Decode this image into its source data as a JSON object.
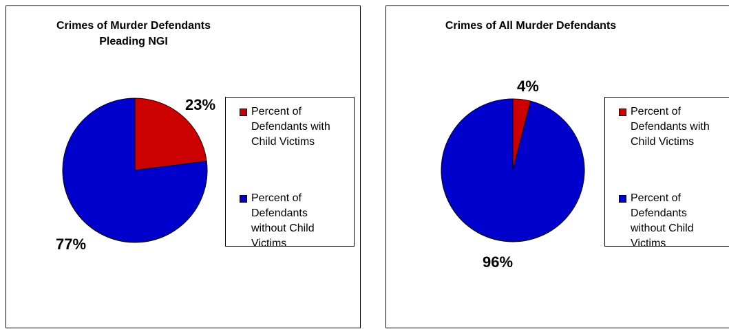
{
  "chart_data": [
    {
      "type": "pie",
      "title": [
        "Crimes of Murder Defendants",
        "Pleading NGI"
      ],
      "categories": [
        "Percent of Defendants with Child Victims",
        "Percent of Defendants without Child Victims"
      ],
      "values": [
        23,
        77
      ],
      "data_labels": [
        "23%",
        "77%"
      ],
      "colors": [
        "#cc0000",
        "#0000cc"
      ],
      "legend_position": "right"
    },
    {
      "type": "pie",
      "title": [
        "Crimes of All Murder Defendants"
      ],
      "categories": [
        "Percent of Defendants with Child Victims",
        "Percent of Defendants without Child Victims"
      ],
      "values": [
        4,
        96
      ],
      "data_labels": [
        "4%",
        "96%"
      ],
      "colors": [
        "#cc0000",
        "#0000cc"
      ],
      "legend_position": "right"
    }
  ],
  "legend": {
    "item_0_lines": [
      "Percent of",
      "Defendants with",
      "Child Victims"
    ],
    "item_1_lines": [
      "Percent of",
      "Defendants",
      "without Child",
      "Victims"
    ]
  }
}
